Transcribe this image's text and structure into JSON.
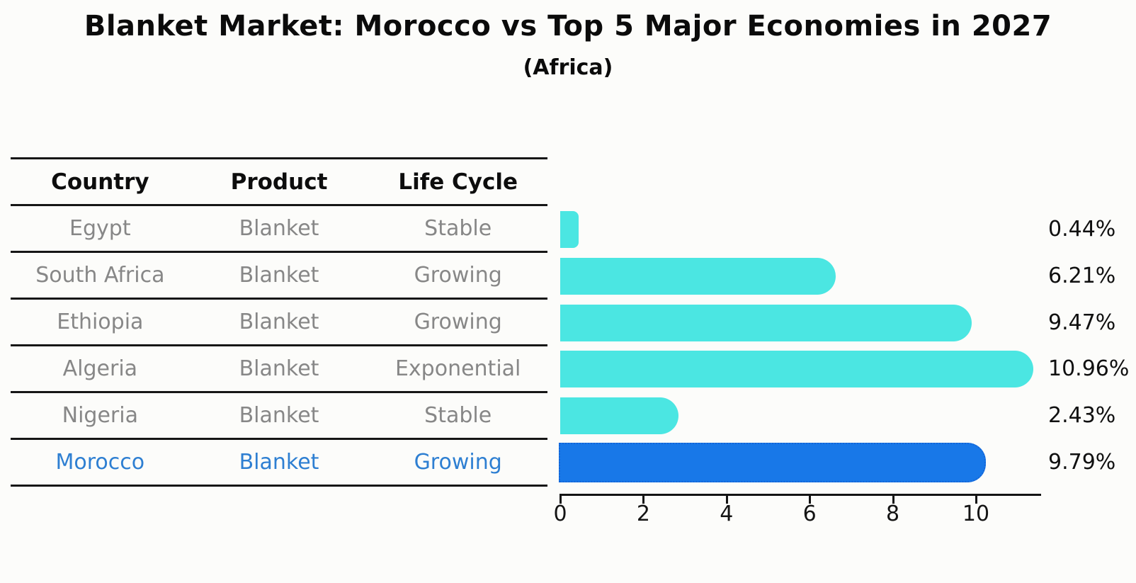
{
  "title": "Blanket Market: Morocco vs Top 5 Major Economies in 2027",
  "subtitle": "(Africa)",
  "table": {
    "headers": [
      "Country",
      "Product",
      "Life Cycle"
    ],
    "rows": [
      {
        "country": "Egypt",
        "product": "Blanket",
        "life_cycle": "Stable",
        "highlighted": false
      },
      {
        "country": "South Africa",
        "product": "Blanket",
        "life_cycle": "Growing",
        "highlighted": false
      },
      {
        "country": "Ethiopia",
        "product": "Blanket",
        "life_cycle": "Growing",
        "highlighted": false
      },
      {
        "country": "Algeria",
        "product": "Blanket",
        "life_cycle": "Exponential",
        "highlighted": false
      },
      {
        "country": "Nigeria",
        "product": "Blanket",
        "life_cycle": "Stable",
        "highlighted": false
      },
      {
        "country": "Morocco",
        "product": "Blanket",
        "life_cycle": "Growing",
        "highlighted": true
      }
    ]
  },
  "chart_data": {
    "type": "bar",
    "orientation": "horizontal",
    "title": "Blanket Market: Morocco vs Top 5 Major Economies in 2027",
    "subtitle": "(Africa)",
    "categories": [
      "Egypt",
      "South Africa",
      "Ethiopia",
      "Algeria",
      "Nigeria",
      "Morocco"
    ],
    "values": [
      0.44,
      6.21,
      9.47,
      10.96,
      2.43,
      9.79
    ],
    "value_labels": [
      "0.44%",
      "6.21%",
      "9.47%",
      "10.96%",
      "2.43%",
      "9.79%"
    ],
    "x_ticks": [
      0,
      2,
      4,
      6,
      8,
      10
    ],
    "xlim": [
      0,
      11.57
    ],
    "grid": false,
    "legend": false,
    "highlight_index": 5,
    "bar_color": "#4be6e2",
    "highlight_bar_color": "#1878e8",
    "highlight_border_color": "#1465d8",
    "highlight_text_color": "#2e7fd2",
    "bar_cap_extension_units": 0.42
  }
}
